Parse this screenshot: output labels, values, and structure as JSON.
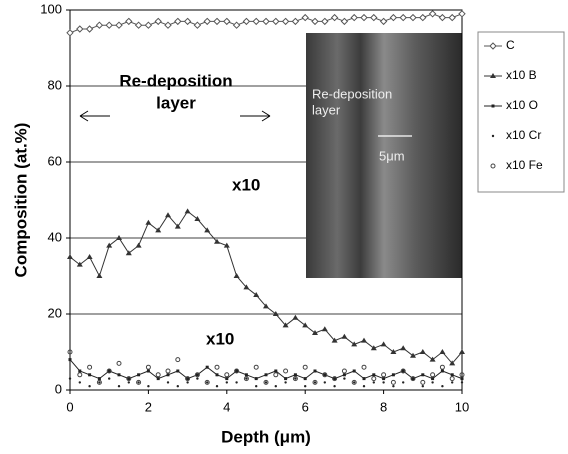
{
  "chart_data": {
    "type": "line",
    "x_label": "Depth  (μm)",
    "y_label": "Composition (at.%)",
    "xlim": [
      0,
      10
    ],
    "ylim": [
      0,
      100
    ],
    "xticks": [
      0,
      2,
      4,
      6,
      8,
      10
    ],
    "yticks": [
      0,
      20,
      40,
      60,
      80,
      100
    ],
    "grid": true,
    "legend": "outside right",
    "annotations": [
      "Re-deposition",
      "layer",
      "x10",
      "x10",
      "Re-deposition",
      "layer",
      "5μm"
    ],
    "x": [
      0,
      0.25,
      0.5,
      0.75,
      1,
      1.25,
      1.5,
      1.75,
      2,
      2.25,
      2.5,
      2.75,
      3,
      3.25,
      3.5,
      3.75,
      4,
      4.25,
      4.5,
      4.75,
      5,
      5.25,
      5.5,
      5.75,
      6,
      6.25,
      6.5,
      6.75,
      7,
      7.25,
      7.5,
      7.75,
      8,
      8.25,
      8.5,
      8.75,
      9,
      9.25,
      9.5,
      9.75,
      10
    ],
    "series": [
      {
        "name": "C",
        "color": "#555555",
        "marker": "diamond",
        "line": true,
        "values": [
          94,
          95,
          95,
          96,
          96,
          96,
          97,
          96,
          96,
          97,
          96,
          97,
          97,
          96,
          97,
          97,
          97,
          96,
          97,
          97,
          97,
          97,
          97,
          97,
          98,
          97,
          97,
          98,
          97,
          98,
          98,
          98,
          97,
          98,
          98,
          98,
          98,
          99,
          98,
          98,
          99
        ]
      },
      {
        "name": "x10 B",
        "color": "#333333",
        "marker": "triangle",
        "line": true,
        "values": [
          35,
          33,
          35,
          30,
          38,
          40,
          36,
          38,
          44,
          42,
          46,
          43,
          47,
          45,
          42,
          39,
          38,
          30,
          27,
          25,
          22,
          20,
          17,
          19,
          17,
          15,
          16,
          13,
          14,
          12,
          13,
          11,
          12,
          10,
          11,
          9,
          10,
          8,
          10,
          7,
          10
        ]
      },
      {
        "name": "x10 O",
        "color": "#222222",
        "marker": "square",
        "line": true,
        "values": [
          8,
          5,
          4,
          3,
          5,
          4,
          3,
          4,
          5,
          3,
          4,
          5,
          3,
          4,
          6,
          4,
          3,
          5,
          4,
          3,
          4,
          5,
          3,
          4,
          3,
          5,
          4,
          3,
          4,
          5,
          3,
          4,
          3,
          4,
          5,
          3,
          4,
          3,
          5,
          4,
          3
        ]
      },
      {
        "name": "x10 Cr",
        "color": "#222222",
        "marker": "dot",
        "line": false,
        "values": [
          3,
          2,
          1,
          2,
          3,
          1,
          2,
          2,
          1,
          3,
          2,
          1,
          2,
          3,
          2,
          1,
          2,
          2,
          3,
          1,
          2,
          1,
          2,
          3,
          1,
          2,
          2,
          1,
          3,
          2,
          1,
          2,
          2,
          1,
          2,
          3,
          1,
          2,
          1,
          2,
          2
        ]
      },
      {
        "name": "x10 Fe",
        "color": "#444444",
        "marker": "circle",
        "line": false,
        "values": [
          10,
          4,
          6,
          2,
          5,
          7,
          3,
          2,
          6,
          4,
          5,
          8,
          3,
          4,
          2,
          6,
          4,
          5,
          3,
          6,
          2,
          4,
          5,
          3,
          6,
          2,
          4,
          3,
          5,
          2,
          6,
          3,
          4,
          2,
          5,
          3,
          2,
          4,
          6,
          3,
          4
        ]
      }
    ]
  }
}
